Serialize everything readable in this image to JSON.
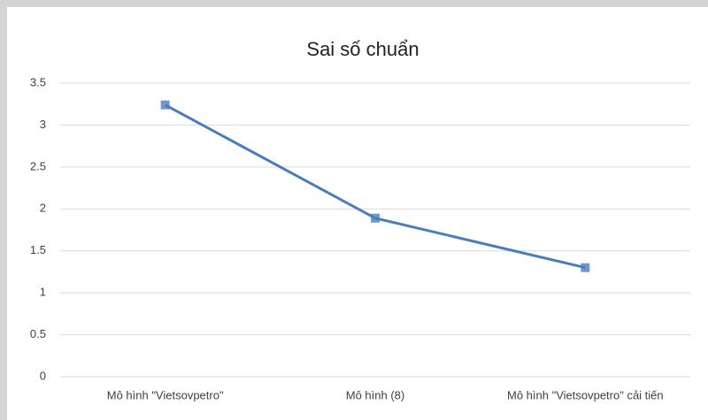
{
  "chart_data": {
    "type": "line",
    "title": "Sai số chuẩn",
    "categories": [
      "Mô hình \"Vietsovpetro\"",
      "Mô hình (8)",
      "Mô hình \"Vietsovpetro\" cải tiến"
    ],
    "values": [
      3.24,
      1.89,
      1.3
    ],
    "color": "#4a7ebb",
    "ylim": [
      0,
      3.5
    ],
    "yticks": [
      0,
      0.5,
      1,
      1.5,
      2,
      2.5,
      3,
      3.5
    ],
    "grid": true
  }
}
